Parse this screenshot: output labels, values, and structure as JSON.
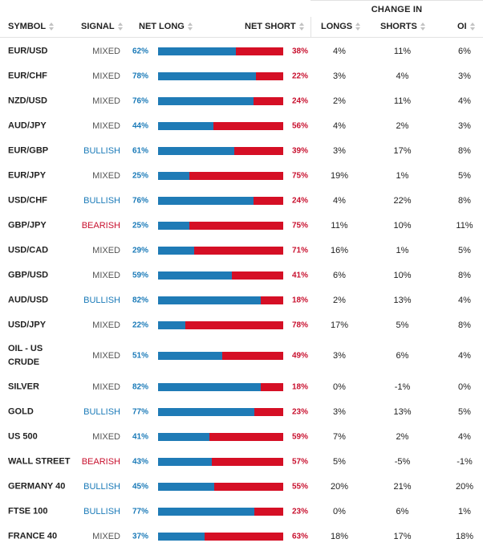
{
  "header": {
    "group_label": "CHANGE IN",
    "symbol": "SYMBOL",
    "signal": "SIGNAL",
    "net_long": "NET LONG",
    "net_short": "NET SHORT",
    "longs": "LONGS",
    "shorts": "SHORTS",
    "oi": "OI"
  },
  "colors": {
    "long": "#1f7bb6",
    "short": "#d50f25",
    "bullish": "#1a7ab8",
    "bearish": "#c8102e",
    "mixed": "#555555"
  },
  "rows": [
    {
      "symbol": "EUR/USD",
      "signal": "MIXED",
      "net_long": "62%",
      "net_short": "38%",
      "longs": "4%",
      "shorts": "11%",
      "oi": "6%"
    },
    {
      "symbol": "EUR/CHF",
      "signal": "MIXED",
      "net_long": "78%",
      "net_short": "22%",
      "longs": "3%",
      "shorts": "4%",
      "oi": "3%"
    },
    {
      "symbol": "NZD/USD",
      "signal": "MIXED",
      "net_long": "76%",
      "net_short": "24%",
      "longs": "2%",
      "shorts": "11%",
      "oi": "4%"
    },
    {
      "symbol": "AUD/JPY",
      "signal": "MIXED",
      "net_long": "44%",
      "net_short": "56%",
      "longs": "4%",
      "shorts": "2%",
      "oi": "3%"
    },
    {
      "symbol": "EUR/GBP",
      "signal": "BULLISH",
      "net_long": "61%",
      "net_short": "39%",
      "longs": "3%",
      "shorts": "17%",
      "oi": "8%"
    },
    {
      "symbol": "EUR/JPY",
      "signal": "MIXED",
      "net_long": "25%",
      "net_short": "75%",
      "longs": "19%",
      "shorts": "1%",
      "oi": "5%"
    },
    {
      "symbol": "USD/CHF",
      "signal": "BULLISH",
      "net_long": "76%",
      "net_short": "24%",
      "longs": "4%",
      "shorts": "22%",
      "oi": "8%"
    },
    {
      "symbol": "GBP/JPY",
      "signal": "BEARISH",
      "net_long": "25%",
      "net_short": "75%",
      "longs": "11%",
      "shorts": "10%",
      "oi": "11%"
    },
    {
      "symbol": "USD/CAD",
      "signal": "MIXED",
      "net_long": "29%",
      "net_short": "71%",
      "longs": "16%",
      "shorts": "1%",
      "oi": "5%"
    },
    {
      "symbol": "GBP/USD",
      "signal": "MIXED",
      "net_long": "59%",
      "net_short": "41%",
      "longs": "6%",
      "shorts": "10%",
      "oi": "8%"
    },
    {
      "symbol": "AUD/USD",
      "signal": "BULLISH",
      "net_long": "82%",
      "net_short": "18%",
      "longs": "2%",
      "shorts": "13%",
      "oi": "4%"
    },
    {
      "symbol": "USD/JPY",
      "signal": "MIXED",
      "net_long": "22%",
      "net_short": "78%",
      "longs": "17%",
      "shorts": "5%",
      "oi": "8%"
    },
    {
      "symbol": "OIL - US CRUDE",
      "signal": "MIXED",
      "net_long": "51%",
      "net_short": "49%",
      "longs": "3%",
      "shorts": "6%",
      "oi": "4%"
    },
    {
      "symbol": "SILVER",
      "signal": "MIXED",
      "net_long": "82%",
      "net_short": "18%",
      "longs": "0%",
      "shorts": "-1%",
      "oi": "0%"
    },
    {
      "symbol": "GOLD",
      "signal": "BULLISH",
      "net_long": "77%",
      "net_short": "23%",
      "longs": "3%",
      "shorts": "13%",
      "oi": "5%"
    },
    {
      "symbol": "US 500",
      "signal": "MIXED",
      "net_long": "41%",
      "net_short": "59%",
      "longs": "7%",
      "shorts": "2%",
      "oi": "4%"
    },
    {
      "symbol": "WALL STREET",
      "signal": "BEARISH",
      "net_long": "43%",
      "net_short": "57%",
      "longs": "5%",
      "shorts": "-5%",
      "oi": "-1%"
    },
    {
      "symbol": "GERMANY 40",
      "signal": "BULLISH",
      "net_long": "45%",
      "net_short": "55%",
      "longs": "20%",
      "shorts": "21%",
      "oi": "20%"
    },
    {
      "symbol": "FTSE 100",
      "signal": "BULLISH",
      "net_long": "77%",
      "net_short": "23%",
      "longs": "0%",
      "shorts": "6%",
      "oi": "1%"
    },
    {
      "symbol": "FRANCE 40",
      "signal": "MIXED",
      "net_long": "37%",
      "net_short": "63%",
      "longs": "18%",
      "shorts": "17%",
      "oi": "18%"
    }
  ]
}
